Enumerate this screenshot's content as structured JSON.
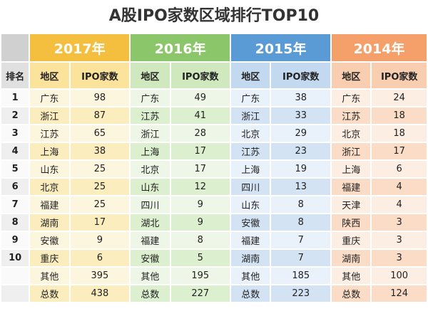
{
  "title": "A股IPO家数区域排行TOP10",
  "table": {
    "years": [
      "2017年",
      "2016年",
      "2015年",
      "2014年"
    ],
    "headers": [
      "排名",
      "地区",
      "IPO家数",
      "地区",
      "IPO家数",
      "地区",
      "IPO家数",
      "地区",
      "IPO家数"
    ],
    "rows": [
      {
        "rank": "1",
        "cells": [
          "广东",
          98,
          "广东",
          49,
          "广东",
          38,
          "广东",
          24
        ]
      },
      {
        "rank": "2",
        "cells": [
          "浙江",
          87,
          "江苏",
          41,
          "浙江",
          33,
          "江苏",
          18
        ]
      },
      {
        "rank": "3",
        "cells": [
          "江苏",
          65,
          "浙江",
          28,
          "北京",
          29,
          "北京",
          18
        ]
      },
      {
        "rank": "4",
        "cells": [
          "上海",
          38,
          "上海",
          17,
          "江苏",
          23,
          "浙江",
          17
        ]
      },
      {
        "rank": "5",
        "cells": [
          "山东",
          25,
          "北京",
          17,
          "上海",
          19,
          "上海",
          6
        ]
      },
      {
        "rank": "6",
        "cells": [
          "北京",
          25,
          "山东",
          12,
          "四川",
          13,
          "福建",
          4
        ]
      },
      {
        "rank": "7",
        "cells": [
          "福建",
          25,
          "四川",
          9,
          "山东",
          8,
          "天津",
          4
        ]
      },
      {
        "rank": "8",
        "cells": [
          "湖南",
          17,
          "湖北",
          9,
          "安徽",
          8,
          "陕西",
          3
        ]
      },
      {
        "rank": "9",
        "cells": [
          "安徽",
          9,
          "福建",
          8,
          "福建",
          7,
          "重庆",
          3
        ]
      },
      {
        "rank": "10",
        "cells": [
          "重庆",
          6,
          "安徽",
          5,
          "湖南",
          7,
          "湖南",
          3
        ]
      },
      {
        "cells": [
          "其他",
          395,
          "其他",
          195,
          "其他",
          185,
          "其他",
          100
        ]
      },
      {
        "cells": [
          "总数",
          438,
          "总数",
          227,
          "总数",
          223,
          "总数",
          124
        ]
      }
    ]
  }
}
